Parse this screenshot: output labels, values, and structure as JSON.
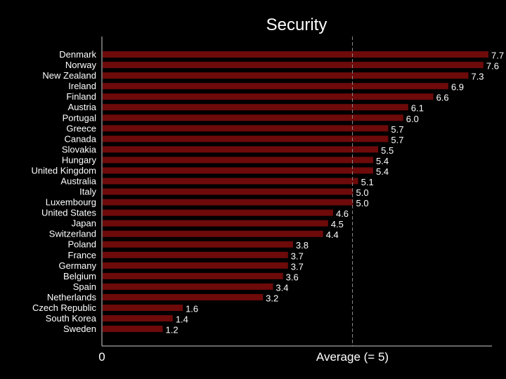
{
  "chart_data": {
    "type": "bar",
    "orientation": "horizontal",
    "title": "Security",
    "categories": [
      "Denmark",
      "Norway",
      "New Zealand",
      "Ireland",
      "Finland",
      "Austria",
      "Portugal",
      "Greece",
      "Canada",
      "Slovakia",
      "Hungary",
      "United Kingdom",
      "Australia",
      "Italy",
      "Luxembourg",
      "United States",
      "Japan",
      "Switzerland",
      "Poland",
      "France",
      "Germany",
      "Belgium",
      "Spain",
      "Netherlands",
      "Czech Republic",
      "South Korea",
      "Sweden"
    ],
    "values": [
      7.7,
      7.6,
      7.3,
      6.9,
      6.6,
      6.1,
      6.0,
      5.7,
      5.7,
      5.5,
      5.4,
      5.4,
      5.1,
      5.0,
      5.0,
      4.6,
      4.5,
      4.4,
      3.8,
      3.7,
      3.7,
      3.6,
      3.4,
      3.2,
      1.6,
      1.4,
      1.2
    ],
    "value_labels": [
      "7.7",
      "7.6",
      "7.3",
      "6.9",
      "6.6",
      "6.1",
      "6.0",
      "5.7",
      "5.7",
      "5.5",
      "5.4",
      "5.4",
      "5.1",
      "5.0",
      "5.0",
      "4.6",
      "4.5",
      "4.4",
      "3.8",
      "3.7",
      "3.7",
      "3.6",
      "3.4",
      "3.2",
      "1.6",
      "1.4",
      "1.2"
    ],
    "x_start_label": "0",
    "average_label": "Average (= 5)",
    "average_value": 5,
    "xlim": [
      0,
      7.8
    ],
    "bar_color": "#6e0a0a",
    "average_line_color": "#888888",
    "axis_color": "#cccccc"
  }
}
